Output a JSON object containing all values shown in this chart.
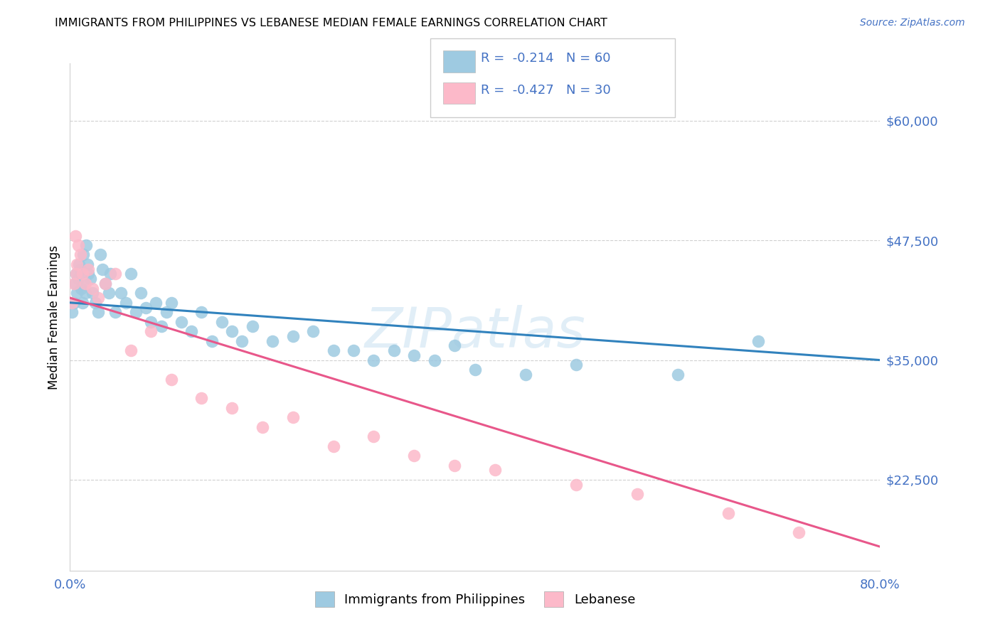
{
  "title": "IMMIGRANTS FROM PHILIPPINES VS LEBANESE MEDIAN FEMALE EARNINGS CORRELATION CHART",
  "source": "Source: ZipAtlas.com",
  "ylabel": "Median Female Earnings",
  "yticks": [
    15000,
    22500,
    35000,
    47500,
    60000
  ],
  "ytick_labels": [
    "",
    "$22,500",
    "$35,000",
    "$47,500",
    "$60,000"
  ],
  "xlim": [
    0,
    0.8
  ],
  "ylim": [
    13000,
    66000
  ],
  "legend_label1": "Immigrants from Philippines",
  "legend_label2": "Lebanese",
  "R1": -0.214,
  "N1": 60,
  "R2": -0.427,
  "N2": 30,
  "color_blue": "#9ecae1",
  "color_pink": "#fcb9c9",
  "color_blue_line": "#3182bd",
  "color_pink_line": "#e8578a",
  "color_text_blue": "#4472C4",
  "philippines_x": [
    0.002,
    0.004,
    0.005,
    0.006,
    0.007,
    0.008,
    0.009,
    0.01,
    0.011,
    0.012,
    0.013,
    0.014,
    0.015,
    0.016,
    0.017,
    0.018,
    0.02,
    0.022,
    0.025,
    0.028,
    0.03,
    0.032,
    0.035,
    0.038,
    0.04,
    0.045,
    0.05,
    0.055,
    0.06,
    0.065,
    0.07,
    0.075,
    0.08,
    0.085,
    0.09,
    0.095,
    0.1,
    0.11,
    0.12,
    0.13,
    0.14,
    0.15,
    0.16,
    0.17,
    0.18,
    0.2,
    0.22,
    0.24,
    0.26,
    0.28,
    0.3,
    0.32,
    0.34,
    0.36,
    0.38,
    0.4,
    0.45,
    0.5,
    0.6,
    0.68
  ],
  "philippines_y": [
    40000,
    41000,
    43000,
    44000,
    42000,
    43500,
    45000,
    44500,
    42500,
    41000,
    46000,
    43000,
    42000,
    47000,
    45000,
    44000,
    43500,
    42000,
    41000,
    40000,
    46000,
    44500,
    43000,
    42000,
    44000,
    40000,
    42000,
    41000,
    44000,
    40000,
    42000,
    40500,
    39000,
    41000,
    38500,
    40000,
    41000,
    39000,
    38000,
    40000,
    37000,
    39000,
    38000,
    37000,
    38500,
    37000,
    37500,
    38000,
    36000,
    36000,
    35000,
    36000,
    35500,
    35000,
    36500,
    34000,
    33500,
    34500,
    33500,
    37000
  ],
  "lebanese_x": [
    0.002,
    0.004,
    0.005,
    0.006,
    0.007,
    0.008,
    0.01,
    0.012,
    0.015,
    0.018,
    0.022,
    0.028,
    0.035,
    0.045,
    0.06,
    0.08,
    0.1,
    0.13,
    0.16,
    0.19,
    0.22,
    0.26,
    0.3,
    0.34,
    0.38,
    0.42,
    0.5,
    0.56,
    0.65,
    0.72
  ],
  "lebanese_y": [
    41000,
    43000,
    48000,
    44000,
    45000,
    47000,
    46000,
    44000,
    43000,
    44500,
    42500,
    41500,
    43000,
    44000,
    36000,
    38000,
    33000,
    31000,
    30000,
    28000,
    29000,
    26000,
    27000,
    25000,
    24000,
    23500,
    22000,
    21000,
    19000,
    17000
  ],
  "blue_line_x": [
    0.0,
    0.8
  ],
  "blue_line_y": [
    41000,
    35000
  ],
  "pink_line_x": [
    0.0,
    0.8
  ],
  "pink_line_y": [
    41500,
    15500
  ],
  "watermark": "ZIPatlas",
  "background_color": "#ffffff",
  "grid_color": "#d0d0d0"
}
